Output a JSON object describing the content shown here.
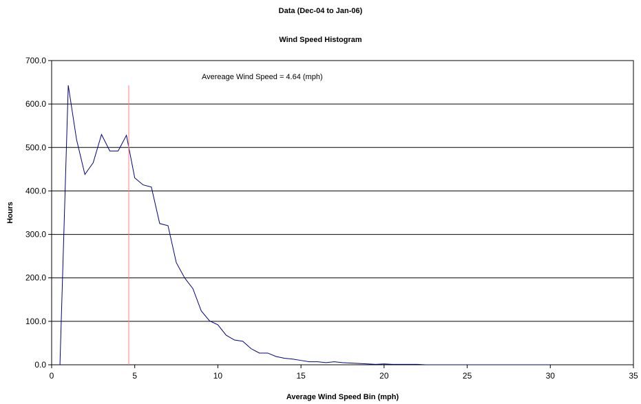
{
  "chart_data": {
    "type": "line",
    "title": "Data (Dec-04 to Jan-06)",
    "subtitle": "Wind Speed Histogram",
    "xlabel": "Average Wind Speed Bin (mph)",
    "ylabel": "Hours",
    "xlim": [
      0,
      35
    ],
    "ylim": [
      0,
      700
    ],
    "xticks": [
      0,
      5,
      10,
      15,
      20,
      25,
      30,
      35
    ],
    "yticks": [
      0,
      100,
      200,
      300,
      400,
      500,
      600,
      700
    ],
    "ytick_labels": [
      "0.0",
      "100.0",
      "200.0",
      "300.0",
      "400.0",
      "500.0",
      "600.0",
      "700.0"
    ],
    "grid": "horizontal",
    "series": [
      {
        "color": "#000080",
        "x": [
          0.5,
          1.0,
          1.5,
          2.0,
          2.5,
          3.0,
          3.5,
          4.0,
          4.5,
          5.0,
          5.5,
          6.0,
          6.5,
          7.0,
          7.5,
          8.0,
          8.5,
          9.0,
          9.5,
          10.0,
          10.5,
          11.0,
          11.5,
          12.0,
          12.5,
          13.0,
          13.5,
          14.0,
          14.5,
          15.0,
          15.5,
          16.0,
          16.5,
          17.0,
          17.5,
          18.0,
          18.5,
          19.0,
          19.5,
          20.0,
          20.5,
          21.0,
          21.5,
          22.0,
          22.5,
          23.0,
          24.0,
          25.0,
          26.0,
          27.0,
          28.0,
          29.0,
          30.0
        ],
        "y": [
          0,
          643,
          518,
          438,
          465,
          530,
          492,
          492,
          528,
          430,
          414,
          409,
          325,
          320,
          235,
          200,
          175,
          124,
          101,
          92,
          68,
          57,
          54,
          37,
          27,
          27,
          19,
          15,
          13,
          10,
          7,
          7,
          5,
          7,
          5,
          4,
          3,
          2,
          1,
          2,
          1,
          1,
          1,
          1,
          0,
          0,
          0,
          0,
          0,
          0,
          0,
          0,
          0
        ]
      }
    ],
    "average_marker": {
      "x": 4.64,
      "y_top": 643,
      "color": "#ff8080",
      "label": "Avereage Wind Speed = 4.64 (mph)"
    }
  }
}
